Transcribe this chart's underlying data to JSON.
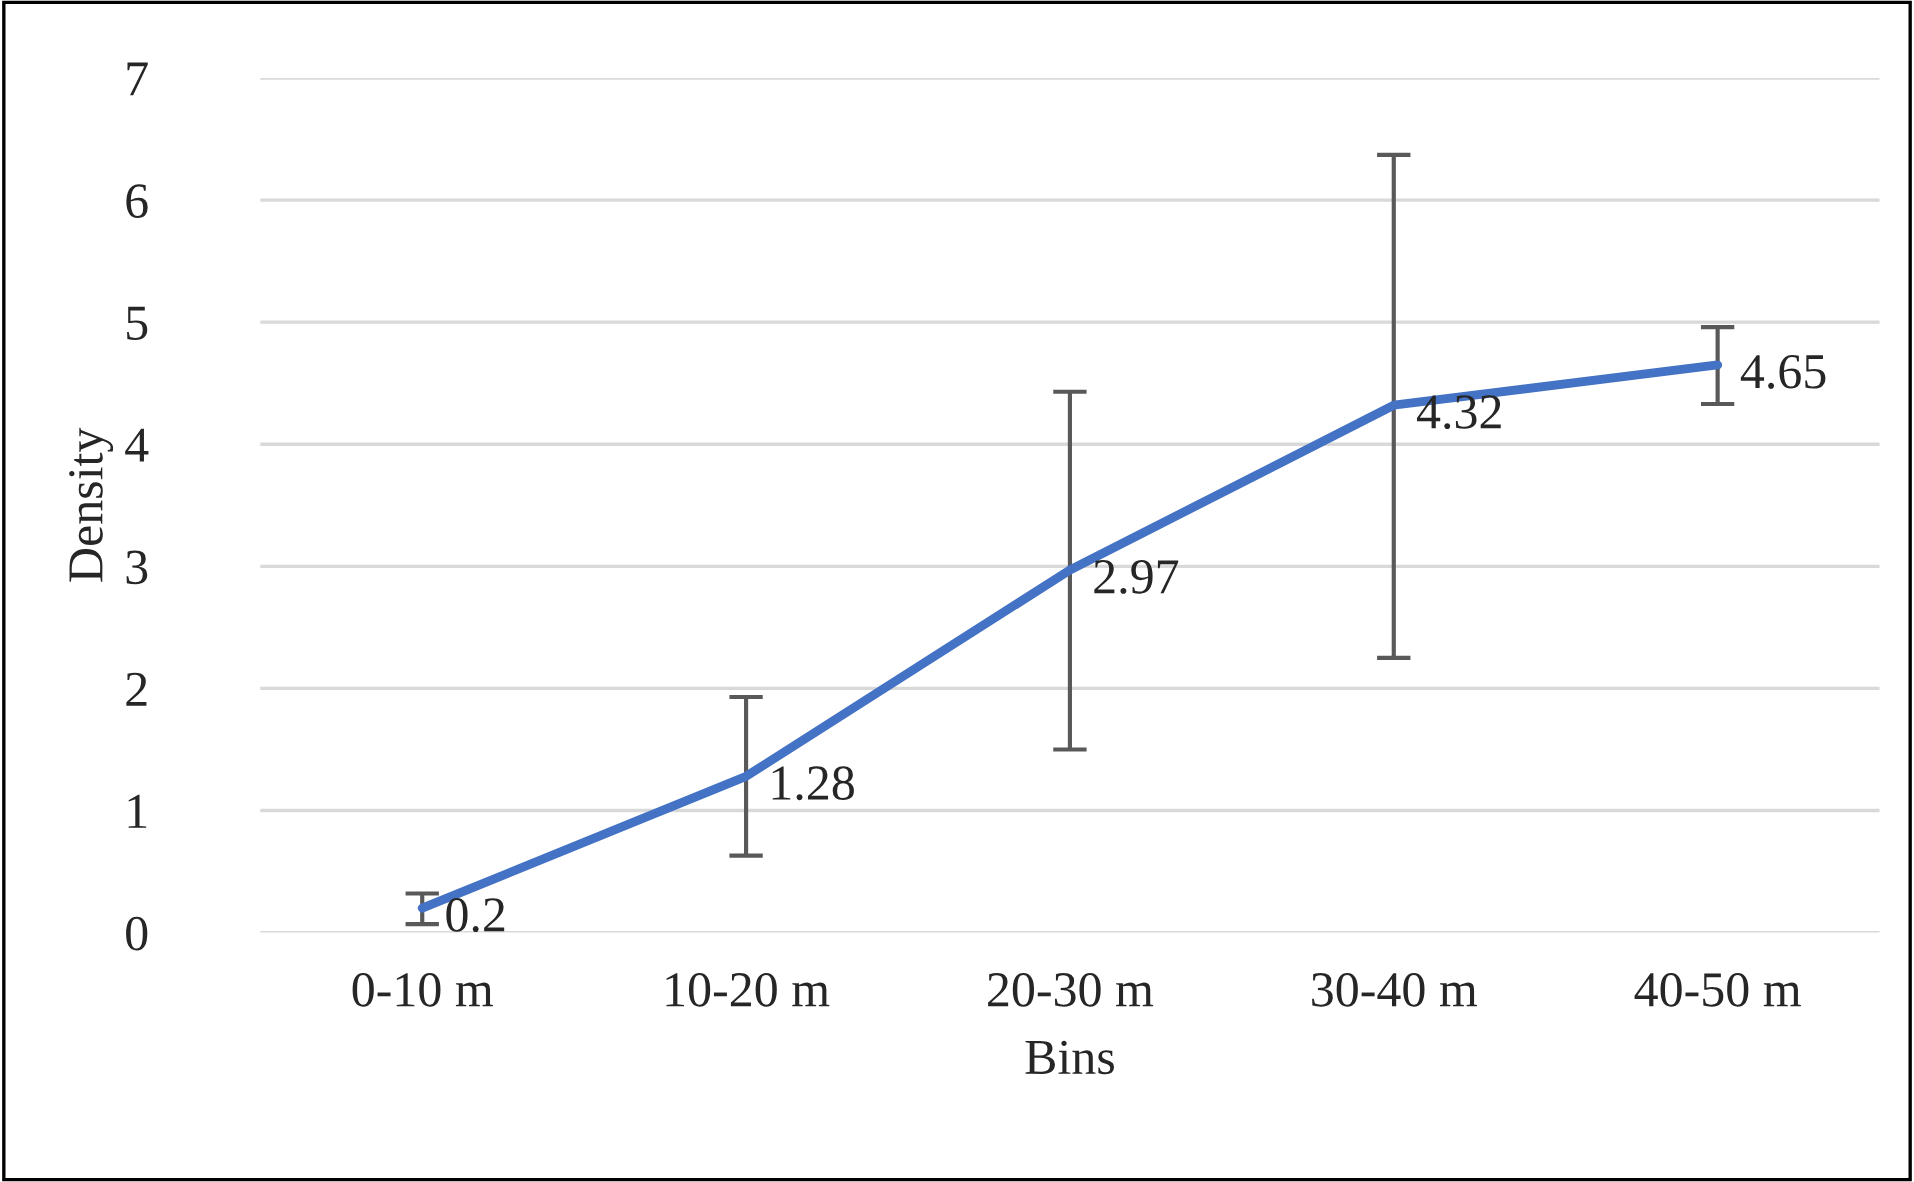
{
  "chart_data": {
    "type": "line",
    "xlabel": "Bins",
    "ylabel": "Density",
    "categories": [
      "0-10 m",
      "10-20 m",
      "20-30 m",
      "30-40 m",
      "40-50 m"
    ],
    "series": [
      {
        "color": "#4472c4",
        "values": [
          0.2,
          1.28,
          2.97,
          4.32,
          4.65
        ],
        "errors": [
          [
            0.07,
            0.32
          ],
          [
            0.63,
            1.93
          ],
          [
            1.5,
            4.43
          ],
          [
            2.25,
            6.37
          ],
          [
            4.33,
            4.96
          ]
        ]
      }
    ],
    "data_labels": true,
    "ylim": [
      0,
      7
    ],
    "yticks": [
      0,
      1,
      2,
      3,
      4,
      5,
      6,
      7
    ],
    "grid": "y",
    "marker": "none",
    "line_style": "solid"
  }
}
